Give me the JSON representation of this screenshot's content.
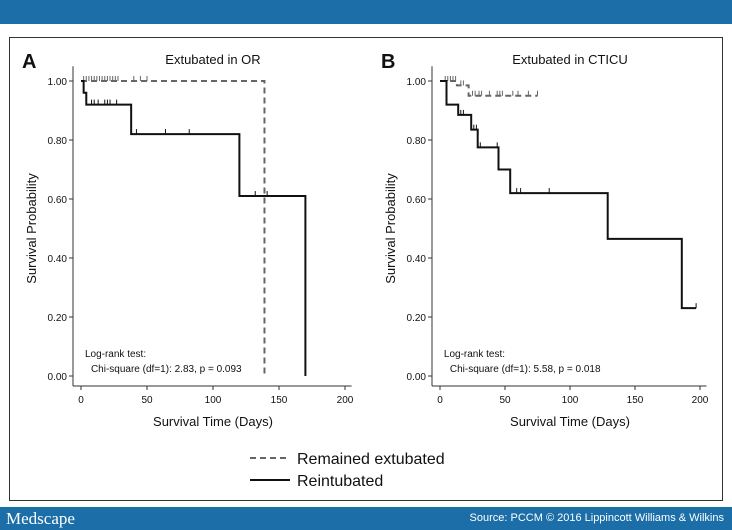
{
  "footer": {
    "logo": "Medscape",
    "source": "Source: PCCM © 2016 Lippincott Williams & Wilkins"
  },
  "legend": {
    "position": "bottom",
    "entries": [
      "Remained extubated",
      "Reintubated"
    ]
  },
  "chart_data": [
    {
      "type": "line",
      "panel": "A",
      "title": "Extubated in OR",
      "xlabel": "Survival Time (Days)",
      "ylabel": "Survival Probability",
      "xlim": [
        0,
        200
      ],
      "ylim": [
        0,
        1
      ],
      "xticks": [
        "0",
        "50",
        "100",
        "150",
        "200"
      ],
      "yticks": [
        "0.00",
        "0.20",
        "0.40",
        "0.60",
        "0.80",
        "1.00"
      ],
      "annotation": [
        "Log-rank test:",
        "Chi-square (df=1): 2.83, p = 0.093"
      ],
      "series": [
        {
          "name": "Remained extubated",
          "style": "dashed",
          "color": "#666666",
          "steps": [
            [
              0,
              1.0
            ],
            [
              139,
              0.0
            ]
          ],
          "censored": [
            [
              2,
              1
            ],
            [
              4,
              1
            ],
            [
              6,
              1
            ],
            [
              8,
              1
            ],
            [
              10,
              1
            ],
            [
              12,
              1
            ],
            [
              14,
              1
            ],
            [
              16,
              1
            ],
            [
              18,
              1
            ],
            [
              20,
              1
            ],
            [
              22,
              1
            ],
            [
              24,
              1
            ],
            [
              26,
              1
            ],
            [
              28,
              1
            ],
            [
              40,
              1
            ],
            [
              45,
              1
            ],
            [
              50,
              1
            ]
          ]
        },
        {
          "name": "Reintubated",
          "style": "solid",
          "color": "#111111",
          "steps": [
            [
              0,
              1.0
            ],
            [
              2,
              0.96
            ],
            [
              4,
              0.92
            ],
            [
              38,
              0.82
            ],
            [
              120,
              0.61
            ],
            [
              170,
              0.0
            ]
          ],
          "censored": [
            [
              8,
              0.92
            ],
            [
              10,
              0.92
            ],
            [
              13,
              0.92
            ],
            [
              18,
              0.92
            ],
            [
              20,
              0.92
            ],
            [
              22,
              0.92
            ],
            [
              27,
              0.92
            ],
            [
              42,
              0.82
            ],
            [
              64,
              0.82
            ],
            [
              82,
              0.82
            ],
            [
              132,
              0.61
            ],
            [
              141,
              0.61
            ]
          ]
        }
      ]
    },
    {
      "type": "line",
      "panel": "B",
      "title": "Extubated in CTICU",
      "xlabel": "Survival Time (Days)",
      "ylabel": "Survival Probability",
      "xlim": [
        0,
        200
      ],
      "ylim": [
        0,
        1
      ],
      "xticks": [
        "0",
        "50",
        "100",
        "150",
        "200"
      ],
      "yticks": [
        "0.00",
        "0.20",
        "0.40",
        "0.60",
        "0.80",
        "1.00"
      ],
      "annotation": [
        "Log-rank test:",
        "Chi-square (df=1): 5.58, p = 0.018"
      ],
      "series": [
        {
          "name": "Remained extubated",
          "style": "dashed",
          "color": "#666666",
          "steps": [
            [
              0,
              1.0
            ],
            [
              13,
              0.985
            ],
            [
              22,
              0.95
            ],
            [
              75,
              0.95
            ]
          ],
          "censored": [
            [
              4,
              1
            ],
            [
              6,
              1
            ],
            [
              8,
              1
            ],
            [
              10,
              1
            ],
            [
              12,
              1
            ],
            [
              16,
              0.985
            ],
            [
              18,
              0.985
            ],
            [
              25,
              0.95
            ],
            [
              27,
              0.95
            ],
            [
              30,
              0.95
            ],
            [
              32,
              0.95
            ],
            [
              38,
              0.95
            ],
            [
              44,
              0.95
            ],
            [
              46,
              0.95
            ],
            [
              48,
              0.95
            ],
            [
              56,
              0.95
            ],
            [
              60,
              0.95
            ],
            [
              68,
              0.95
            ],
            [
              75,
              0.95
            ]
          ]
        },
        {
          "name": "Reintubated",
          "style": "solid",
          "color": "#111111",
          "steps": [
            [
              0,
              1.0
            ],
            [
              5,
              0.92
            ],
            [
              14,
              0.885
            ],
            [
              24,
              0.835
            ],
            [
              29,
              0.775
            ],
            [
              45,
              0.7
            ],
            [
              54,
              0.62
            ],
            [
              129,
              0.465
            ],
            [
              186,
              0.23
            ],
            [
              197,
              0.23
            ]
          ],
          "censored": [
            [
              16,
              0.885
            ],
            [
              18,
              0.885
            ],
            [
              26,
              0.835
            ],
            [
              28,
              0.835
            ],
            [
              31,
              0.775
            ],
            [
              44,
              0.775
            ],
            [
              59,
              0.62
            ],
            [
              62,
              0.62
            ],
            [
              84,
              0.62
            ],
            [
              129,
              0.465
            ],
            [
              197,
              0.23
            ]
          ]
        }
      ]
    }
  ]
}
